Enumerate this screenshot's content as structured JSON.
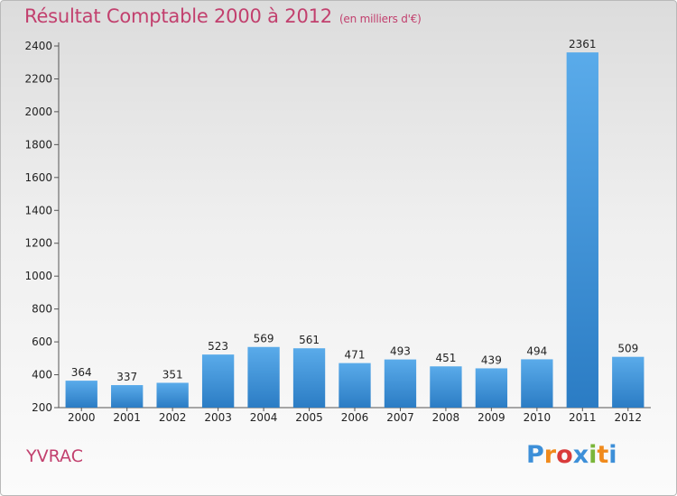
{
  "chart_data": {
    "type": "bar",
    "title": "Résultat Comptable 2000 à 2012",
    "subtitle": "(en milliers d'€)",
    "xlabel": "",
    "ylabel": "",
    "categories": [
      "2000",
      "2001",
      "2002",
      "2003",
      "2004",
      "2005",
      "2006",
      "2007",
      "2008",
      "2009",
      "2010",
      "2011",
      "2012"
    ],
    "values": [
      364,
      337,
      351,
      523,
      569,
      561,
      471,
      493,
      451,
      439,
      494,
      2361,
      509
    ],
    "ylim": [
      200,
      2400
    ],
    "yticks": [
      200,
      400,
      600,
      800,
      1000,
      1200,
      1400,
      1600,
      1800,
      2000,
      2200,
      2400
    ],
    "grid": false,
    "bar_color": "#3a8fd6"
  },
  "place": "YVRAC",
  "logo": {
    "letters": [
      {
        "ch": "P",
        "color": "#3d8fd8"
      },
      {
        "ch": "r",
        "color": "#f08a1c"
      },
      {
        "ch": "o",
        "color": "#d93a3a"
      },
      {
        "ch": "x",
        "color": "#3d8fd8"
      },
      {
        "ch": "i",
        "color": "#7ab63a"
      },
      {
        "ch": "t",
        "color": "#f08a1c"
      },
      {
        "ch": "i",
        "color": "#3d8fd8"
      }
    ]
  }
}
